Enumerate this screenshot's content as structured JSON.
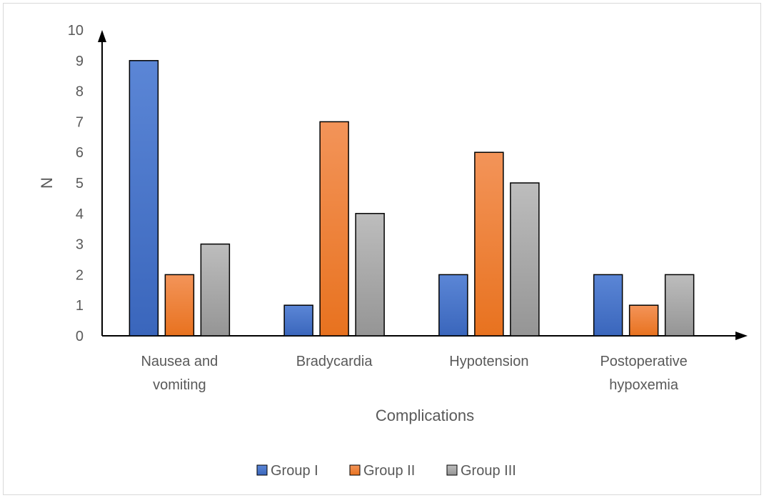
{
  "chart_data": {
    "type": "bar",
    "categories": [
      [
        "Nausea and",
        "vomiting"
      ],
      [
        "Bradycardia"
      ],
      [
        "Hypotension"
      ],
      [
        "Postoperative",
        "hypoxemia"
      ]
    ],
    "series": [
      {
        "name": "Group I",
        "values": [
          9,
          1,
          2,
          2
        ],
        "color": "#4472c4"
      },
      {
        "name": "Group II",
        "values": [
          2,
          7,
          6,
          1
        ],
        "color": "#ed7d31"
      },
      {
        "name": "Group III",
        "values": [
          3,
          4,
          5,
          2
        ],
        "color": "#a5a5a5"
      }
    ],
    "xlabel": "Complications",
    "ylabel": "N",
    "ylim": [
      0,
      10
    ],
    "yticks": [
      0,
      1,
      2,
      3,
      4,
      5,
      6,
      7,
      8,
      9,
      10
    ],
    "grid": false,
    "legend_position": "bottom"
  }
}
